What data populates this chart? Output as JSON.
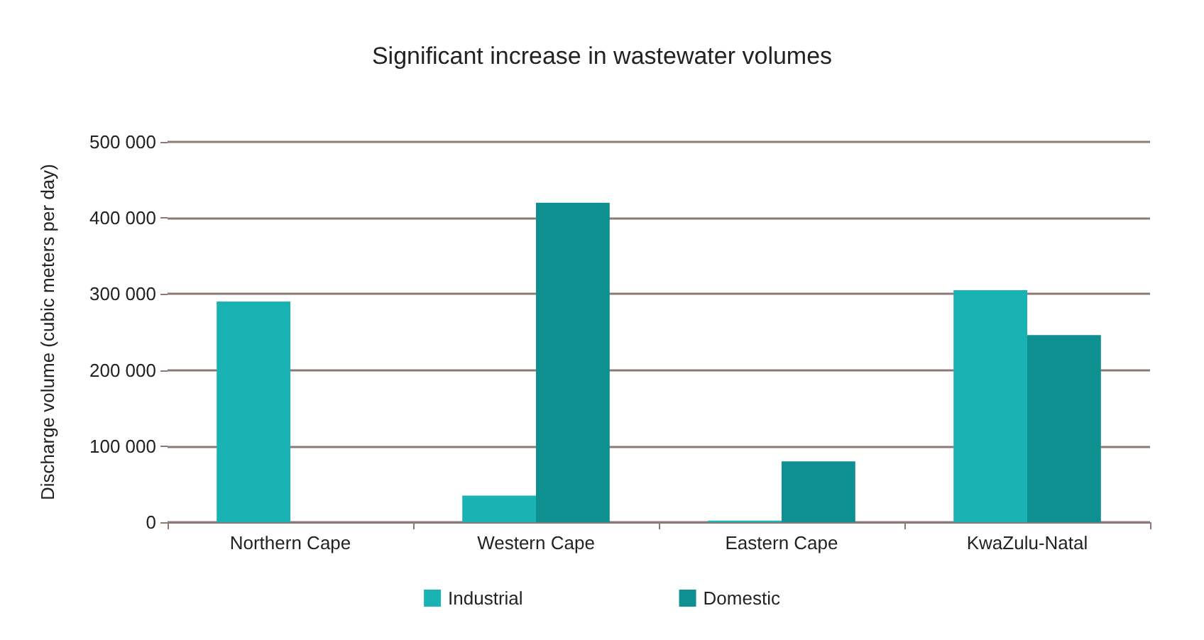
{
  "chart_data": {
    "type": "bar",
    "title": "Significant increase in wastewater volumes",
    "ylabel": "Discharge volume (cubic meters per day)",
    "categories": [
      "Northern Cape",
      "Western Cape",
      "Eastern Cape",
      "KwaZulu-Natal"
    ],
    "series": [
      {
        "name": "Industrial",
        "color": "#1ab3b3",
        "values": [
          290000,
          35000,
          2000,
          305000
        ]
      },
      {
        "name": "Domestic",
        "color": "#0e9090",
        "values": [
          0,
          420000,
          80000,
          246000
        ]
      }
    ],
    "ylim": [
      0,
      500000
    ],
    "yticks": [
      {
        "value": 0,
        "label": "0"
      },
      {
        "value": 100000,
        "label": "100 000"
      },
      {
        "value": 200000,
        "label": "200 000"
      },
      {
        "value": 300000,
        "label": "300 000"
      },
      {
        "value": 400000,
        "label": "400 000"
      },
      {
        "value": 500000,
        "label": "500 000"
      }
    ],
    "grid": "y",
    "legend": "bottom"
  }
}
